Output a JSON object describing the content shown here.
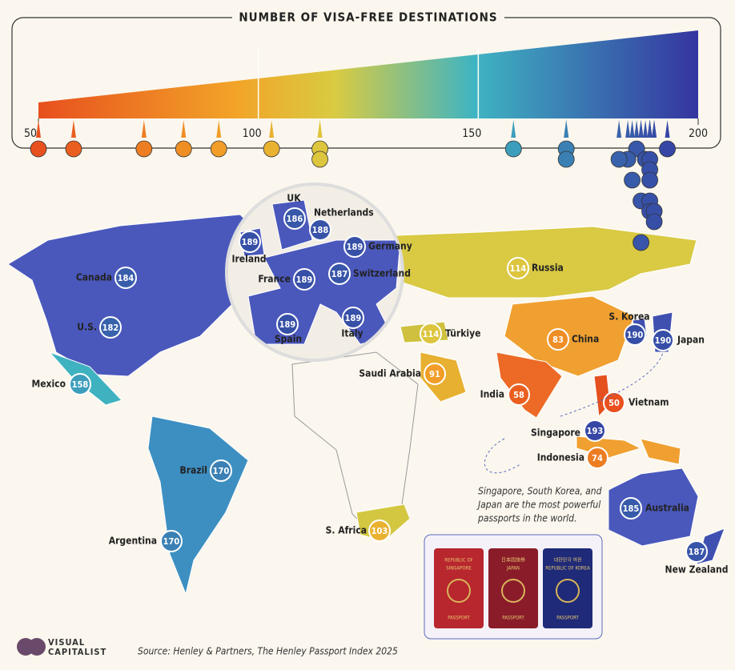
{
  "title": "NUMBER OF VISA-FREE DESTINATIONS",
  "scale": {
    "xlim": [
      50,
      200
    ],
    "xticks": [
      50,
      100,
      150,
      200
    ]
  },
  "countries": [
    {
      "name": "UK",
      "value": 186
    },
    {
      "name": "Netherlands",
      "value": 188
    },
    {
      "name": "Ireland",
      "value": 189
    },
    {
      "name": "Germany",
      "value": 189
    },
    {
      "name": "France",
      "value": 189
    },
    {
      "name": "Switzerland",
      "value": 187
    },
    {
      "name": "Spain",
      "value": 189
    },
    {
      "name": "Italy",
      "value": 189
    },
    {
      "name": "Canada",
      "value": 184
    },
    {
      "name": "U.S.",
      "value": 182
    },
    {
      "name": "Mexico",
      "value": 158
    },
    {
      "name": "Brazil",
      "value": 170
    },
    {
      "name": "Argentina",
      "value": 170
    },
    {
      "name": "Russia",
      "value": 114
    },
    {
      "name": "Türkiye",
      "value": 114
    },
    {
      "name": "Saudi Arabia",
      "value": 91
    },
    {
      "name": "China",
      "value": 83
    },
    {
      "name": "India",
      "value": 58
    },
    {
      "name": "Vietnam",
      "value": 50
    },
    {
      "name": "S. Korea",
      "value": 190
    },
    {
      "name": "Japan",
      "value": 190
    },
    {
      "name": "Singapore",
      "value": 193
    },
    {
      "name": "Indonesia",
      "value": 74
    },
    {
      "name": "Australia",
      "value": 185
    },
    {
      "name": "New Zealand",
      "value": 187
    },
    {
      "name": "S. Africa",
      "value": 103
    }
  ],
  "note": {
    "lines": [
      "Singapore, South Korea, and",
      "Japan are the most powerful",
      "passports in the world."
    ]
  },
  "passports": [
    {
      "lines": [
        "REPUBLIC OF",
        "SINGAPORE",
        "PASSPORT"
      ]
    },
    {
      "lines": [
        "日本国旅券",
        "JAPAN",
        "PASSPORT"
      ]
    },
    {
      "lines": [
        "대한민국 여권",
        "REPUBLIC OF KOREA",
        "PASSPORT"
      ]
    }
  ],
  "source": "Source: Henley & Partners, The Henley Passport Index 2025",
  "logo": [
    "VISUAL",
    "CAPITALIST"
  ]
}
